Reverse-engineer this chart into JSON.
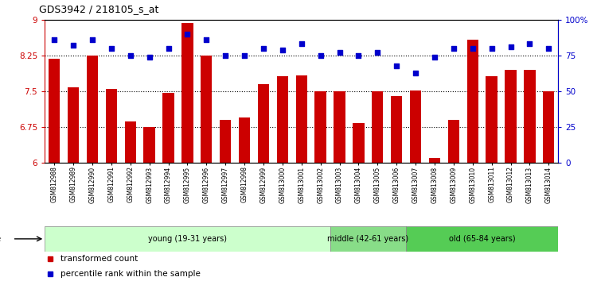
{
  "title": "GDS3942 / 218105_s_at",
  "samples": [
    "GSM812988",
    "GSM812989",
    "GSM812990",
    "GSM812991",
    "GSM812992",
    "GSM812993",
    "GSM812994",
    "GSM812995",
    "GSM812996",
    "GSM812997",
    "GSM812998",
    "GSM812999",
    "GSM813000",
    "GSM813001",
    "GSM813002",
    "GSM813003",
    "GSM813004",
    "GSM813005",
    "GSM813006",
    "GSM813007",
    "GSM813008",
    "GSM813009",
    "GSM813010",
    "GSM813011",
    "GSM813012",
    "GSM813013",
    "GSM813014"
  ],
  "bar_values": [
    8.19,
    7.58,
    8.25,
    7.55,
    6.87,
    6.75,
    7.47,
    8.93,
    8.25,
    6.9,
    6.95,
    7.65,
    7.82,
    7.84,
    7.5,
    7.5,
    6.83,
    7.5,
    7.4,
    7.52,
    6.1,
    6.9,
    8.58,
    7.82,
    7.95,
    7.95,
    7.5
  ],
  "percentile_values": [
    86,
    82,
    86,
    80,
    75,
    74,
    80,
    90,
    86,
    75,
    75,
    80,
    79,
    83,
    75,
    77,
    75,
    77,
    68,
    63,
    74,
    80,
    80,
    80,
    81,
    83,
    80
  ],
  "groups": [
    {
      "label": "young (19-31 years)",
      "start": 0,
      "end": 15,
      "color": "#ccffcc"
    },
    {
      "label": "middle (42-61 years)",
      "start": 15,
      "end": 19,
      "color": "#88dd88"
    },
    {
      "label": "old (65-84 years)",
      "start": 19,
      "end": 27,
      "color": "#55cc55"
    }
  ],
  "bar_color": "#cc0000",
  "dot_color": "#0000cc",
  "ylim_left": [
    6,
    9
  ],
  "ylim_right": [
    0,
    100
  ],
  "yticks_left": [
    6,
    6.75,
    7.5,
    8.25,
    9
  ],
  "yticks_right": [
    0,
    25,
    50,
    75,
    100
  ],
  "ytick_labels_right": [
    "0",
    "25",
    "50",
    "75",
    "100%"
  ],
  "hlines": [
    6.75,
    7.5,
    8.25
  ],
  "bar_width": 0.6
}
